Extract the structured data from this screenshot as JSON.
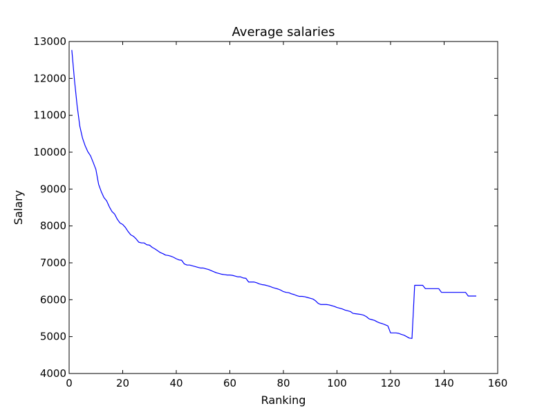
{
  "chart_data": {
    "type": "line",
    "title": "Average salaries",
    "xlabel": "Ranking",
    "ylabel": "Salary",
    "xlim": [
      0,
      160
    ],
    "ylim": [
      4000,
      13000
    ],
    "xticks": [
      0,
      20,
      40,
      60,
      80,
      100,
      120,
      140,
      160
    ],
    "yticks": [
      4000,
      5000,
      6000,
      7000,
      8000,
      9000,
      10000,
      11000,
      12000,
      13000
    ],
    "grid": false,
    "series": [
      {
        "color": "#0000ff",
        "x": [
          1,
          2,
          3,
          4,
          5,
          6,
          7,
          8,
          9,
          10,
          11,
          12,
          13,
          14,
          15,
          16,
          17,
          18,
          19,
          20,
          21,
          22,
          23,
          24,
          25,
          26,
          27,
          28,
          29,
          30,
          31,
          32,
          33,
          34,
          35,
          36,
          37,
          38,
          39,
          40,
          41,
          42,
          43,
          44,
          45,
          46,
          47,
          48,
          49,
          50,
          51,
          52,
          53,
          54,
          55,
          56,
          57,
          58,
          59,
          60,
          61,
          62,
          63,
          64,
          65,
          66,
          67,
          68,
          69,
          70,
          71,
          72,
          73,
          74,
          75,
          76,
          77,
          78,
          79,
          80,
          81,
          82,
          83,
          84,
          85,
          86,
          87,
          88,
          89,
          90,
          91,
          92,
          93,
          94,
          95,
          96,
          97,
          98,
          99,
          100,
          101,
          102,
          103,
          104,
          105,
          106,
          107,
          108,
          109,
          110,
          111,
          112,
          113,
          114,
          115,
          116,
          117,
          118,
          119,
          120,
          121,
          122,
          123,
          124,
          125,
          126,
          127,
          128,
          129,
          130,
          131,
          132,
          133,
          134,
          135,
          136,
          137,
          138,
          139,
          140,
          141,
          142,
          143,
          144,
          145,
          146,
          147,
          148,
          149,
          150,
          151,
          152
        ],
        "y": [
          12770,
          11950,
          11250,
          10700,
          10380,
          10170,
          10010,
          9900,
          9720,
          9530,
          9130,
          8930,
          8770,
          8680,
          8520,
          8390,
          8320,
          8180,
          8080,
          8040,
          7960,
          7850,
          7760,
          7720,
          7650,
          7560,
          7540,
          7540,
          7490,
          7480,
          7420,
          7380,
          7330,
          7280,
          7250,
          7210,
          7200,
          7180,
          7150,
          7110,
          7080,
          7070,
          6970,
          6940,
          6940,
          6920,
          6900,
          6880,
          6860,
          6860,
          6840,
          6820,
          6790,
          6760,
          6730,
          6710,
          6690,
          6680,
          6670,
          6670,
          6660,
          6640,
          6620,
          6620,
          6590,
          6580,
          6480,
          6480,
          6480,
          6460,
          6430,
          6410,
          6400,
          6380,
          6360,
          6330,
          6310,
          6290,
          6260,
          6220,
          6200,
          6190,
          6160,
          6140,
          6110,
          6090,
          6090,
          6080,
          6060,
          6040,
          6020,
          5970,
          5900,
          5870,
          5870,
          5870,
          5860,
          5840,
          5820,
          5790,
          5770,
          5750,
          5720,
          5700,
          5680,
          5630,
          5620,
          5610,
          5600,
          5580,
          5540,
          5480,
          5460,
          5440,
          5400,
          5370,
          5350,
          5320,
          5290,
          5100,
          5100,
          5100,
          5090,
          5060,
          5040,
          5000,
          4960,
          4950,
          6390,
          6390,
          6390,
          6390,
          6300,
          6300,
          6300,
          6300,
          6300,
          6300,
          6200,
          6200,
          6200,
          6200,
          6200,
          6200,
          6200,
          6200,
          6200,
          6200,
          6100,
          6100,
          6100,
          6100
        ]
      }
    ]
  }
}
